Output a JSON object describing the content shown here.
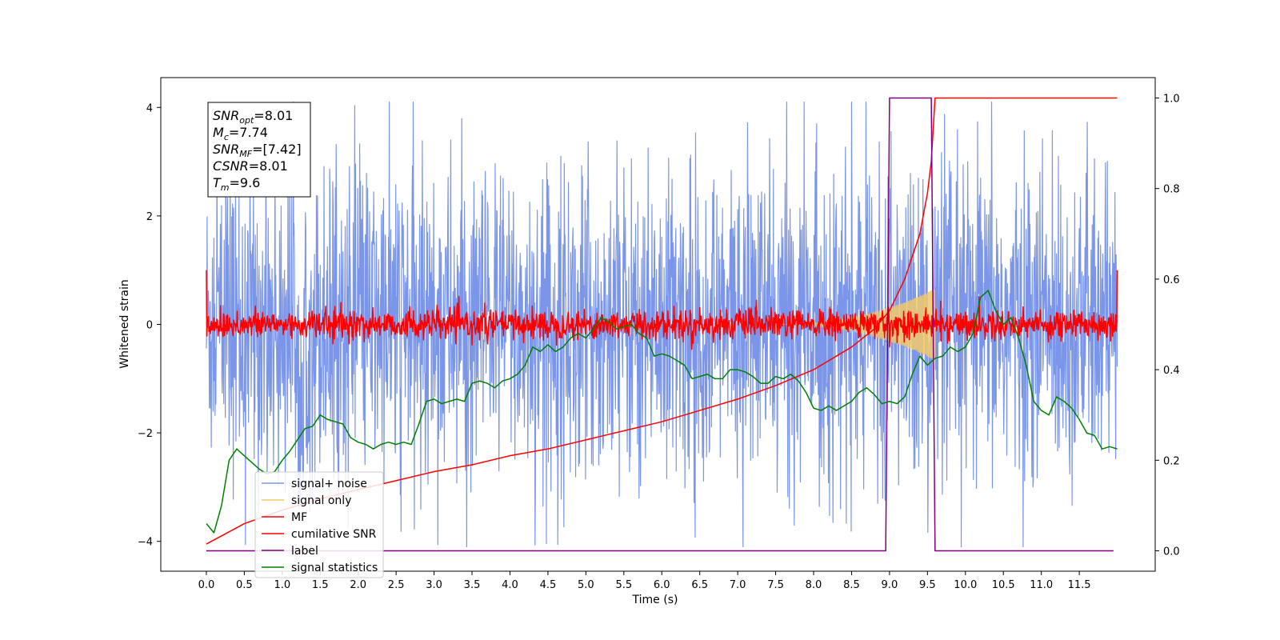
{
  "chart_data": {
    "type": "line",
    "xlabel": "Time (s)",
    "ylabel_left": "Whitened strain",
    "ylabel_right": "",
    "x_ticks": [
      0.0,
      0.5,
      1.0,
      1.5,
      2.0,
      2.5,
      3.0,
      3.5,
      4.0,
      4.5,
      5.0,
      5.5,
      6.0,
      6.5,
      7.0,
      7.5,
      8.0,
      8.5,
      9.0,
      9.5,
      10.0,
      10.5,
      11.0,
      11.5
    ],
    "x_tick_labels": [
      "0.0",
      "0.5",
      "1.0",
      "1.5",
      "2.0",
      "2.5",
      "3.0",
      "3.5",
      "4.0",
      "4.5",
      "5.0",
      "5.5",
      "6.0",
      "6.5",
      "7.0",
      "7.5",
      "8.0",
      "8.5",
      "9.0",
      "9.5",
      "10.0",
      "10.5",
      "11.0",
      "11.5"
    ],
    "left_ticks": [
      -4,
      -2,
      0,
      2,
      4
    ],
    "left_tick_labels": [
      "−4",
      "−2",
      "0",
      "2",
      "4"
    ],
    "right_ticks": [
      0.0,
      0.2,
      0.4,
      0.6,
      0.8,
      1.0
    ],
    "right_tick_labels": [
      "0.0",
      "0.2",
      "0.4",
      "0.6",
      "0.8",
      "1.0"
    ],
    "xlim": [
      -0.6,
      12.5
    ],
    "ylim_left": [
      -4.55,
      4.55
    ],
    "ylim_right": [
      -0.045,
      1.045
    ],
    "grid": false,
    "legend_position": "lower-left",
    "stats_box": [
      {
        "label": "SNR",
        "sub": "opt",
        "value": "=8.01"
      },
      {
        "label": "M",
        "sub": "c",
        "value": "=7.74"
      },
      {
        "label": "SNR",
        "sub": "MF",
        "value": "=[7.42]"
      },
      {
        "label": "CSNR",
        "sub": "",
        "value": "=8.01"
      },
      {
        "label": "T",
        "sub": "m",
        "value": "=9.6"
      }
    ],
    "series": [
      {
        "name": "signal+ noise",
        "axis": "left",
        "color": "#7b96e8",
        "kind": "noise",
        "x_range": [
          0.0,
          12.0
        ],
        "envelope": 1.9,
        "peak": 4.1,
        "min": -4.1
      },
      {
        "name": "signal only",
        "axis": "left",
        "color": "#f2c96a",
        "kind": "chirp",
        "x_range": [
          7.5,
          9.6
        ],
        "amplitude_end": 0.65
      },
      {
        "name": "MF",
        "axis": "left",
        "color": "#ff0000",
        "kind": "noise",
        "x_range": [
          0.0,
          12.0
        ],
        "envelope": 0.18,
        "edge_values": [
          1.0,
          1.0
        ]
      },
      {
        "name": "cumilative SNR",
        "axis": "right",
        "color": "#ff0000",
        "x": [
          0.0,
          0.5,
          1.0,
          1.5,
          2.0,
          2.5,
          3.0,
          3.5,
          4.0,
          4.5,
          5.0,
          5.5,
          6.0,
          6.5,
          7.0,
          7.5,
          8.0,
          8.5,
          8.8,
          9.0,
          9.2,
          9.4,
          9.5,
          9.55,
          9.6,
          12.0
        ],
        "y": [
          0.015,
          0.06,
          0.09,
          0.115,
          0.135,
          0.155,
          0.175,
          0.19,
          0.21,
          0.225,
          0.245,
          0.265,
          0.285,
          0.31,
          0.335,
          0.365,
          0.4,
          0.45,
          0.49,
          0.53,
          0.6,
          0.7,
          0.79,
          0.86,
          1.0,
          1.0
        ]
      },
      {
        "name": "label",
        "axis": "right",
        "color": "#800080",
        "x": [
          0.0,
          8.95,
          9.0,
          9.55,
          9.6,
          11.95
        ],
        "y": [
          0.0,
          0.0,
          1.0,
          1.0,
          0.0,
          0.0
        ]
      },
      {
        "name": "signal statistics",
        "axis": "right",
        "color": "#008000",
        "x": [
          0.0,
          0.1,
          0.2,
          0.3,
          0.4,
          0.5,
          0.6,
          0.7,
          0.8,
          0.9,
          1.0,
          1.1,
          1.2,
          1.3,
          1.4,
          1.5,
          1.6,
          1.7,
          1.8,
          1.9,
          2.0,
          2.1,
          2.2,
          2.3,
          2.4,
          2.5,
          2.6,
          2.7,
          2.8,
          2.9,
          3.0,
          3.1,
          3.2,
          3.3,
          3.4,
          3.5,
          3.6,
          3.7,
          3.8,
          3.9,
          4.0,
          4.1,
          4.2,
          4.3,
          4.4,
          4.5,
          4.6,
          4.7,
          4.8,
          4.9,
          5.0,
          5.1,
          5.2,
          5.3,
          5.4,
          5.5,
          5.6,
          5.7,
          5.8,
          5.9,
          6.0,
          6.1,
          6.2,
          6.3,
          6.4,
          6.5,
          6.6,
          6.7,
          6.8,
          6.9,
          7.0,
          7.1,
          7.2,
          7.3,
          7.4,
          7.5,
          7.6,
          7.7,
          7.8,
          7.9,
          8.0,
          8.1,
          8.2,
          8.3,
          8.4,
          8.5,
          8.6,
          8.7,
          8.8,
          8.9,
          9.0,
          9.1,
          9.2,
          9.3,
          9.4,
          9.5,
          9.6,
          9.7,
          9.8,
          9.9,
          10.0,
          10.1,
          10.2,
          10.3,
          10.4,
          10.5,
          10.6,
          10.7,
          10.8,
          10.9,
          11.0,
          11.1,
          11.2,
          11.3,
          11.4,
          11.5,
          11.6,
          11.7,
          11.8,
          11.9,
          12.0
        ],
        "y": [
          0.06,
          0.04,
          0.1,
          0.2,
          0.225,
          0.21,
          0.195,
          0.18,
          0.17,
          0.175,
          0.2,
          0.22,
          0.245,
          0.27,
          0.275,
          0.3,
          0.29,
          0.285,
          0.28,
          0.25,
          0.24,
          0.235,
          0.225,
          0.235,
          0.24,
          0.235,
          0.24,
          0.235,
          0.28,
          0.33,
          0.335,
          0.325,
          0.33,
          0.335,
          0.33,
          0.37,
          0.375,
          0.37,
          0.36,
          0.375,
          0.38,
          0.39,
          0.41,
          0.45,
          0.44,
          0.455,
          0.44,
          0.45,
          0.47,
          0.48,
          0.47,
          0.49,
          0.515,
          0.505,
          0.49,
          0.495,
          0.5,
          0.48,
          0.47,
          0.43,
          0.435,
          0.43,
          0.42,
          0.41,
          0.38,
          0.385,
          0.39,
          0.38,
          0.38,
          0.4,
          0.4,
          0.395,
          0.385,
          0.37,
          0.37,
          0.385,
          0.38,
          0.39,
          0.375,
          0.35,
          0.315,
          0.31,
          0.32,
          0.31,
          0.32,
          0.33,
          0.35,
          0.36,
          0.345,
          0.325,
          0.33,
          0.325,
          0.34,
          0.39,
          0.43,
          0.41,
          0.425,
          0.43,
          0.45,
          0.44,
          0.45,
          0.48,
          0.56,
          0.575,
          0.53,
          0.5,
          0.515,
          0.47,
          0.41,
          0.33,
          0.31,
          0.3,
          0.34,
          0.33,
          0.315,
          0.29,
          0.26,
          0.255,
          0.225,
          0.23,
          0.225
        ]
      }
    ]
  }
}
